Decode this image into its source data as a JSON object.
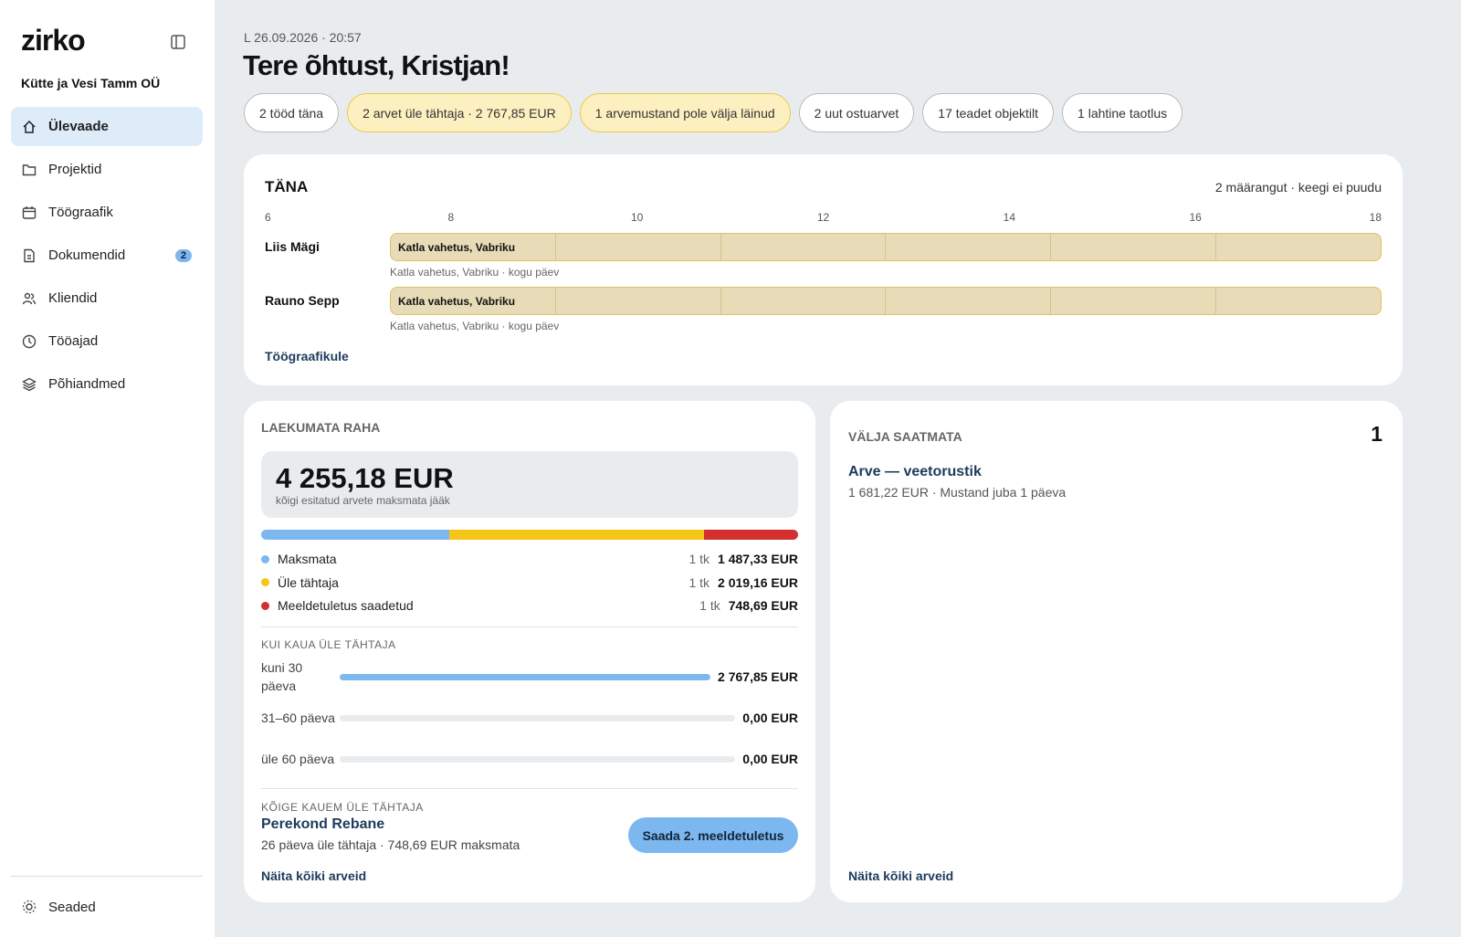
{
  "sidebar": {
    "logo": "zirko",
    "company": "Kütte ja Vesi Tamm OÜ",
    "nav": [
      {
        "label": "Ülevaade",
        "active": true
      },
      {
        "label": "Projektid"
      },
      {
        "label": "Töögraafik"
      },
      {
        "label": "Dokumendid",
        "badge": "2"
      },
      {
        "label": "Kliendid"
      },
      {
        "label": "Tööajad"
      },
      {
        "label": "Põhiandmed"
      }
    ],
    "settings": "Seaded"
  },
  "header": {
    "date": "L 26.09.2026 · 20:57",
    "greeting": "Tere õhtust, Kristjan!"
  },
  "chips": [
    {
      "label": "2 tööd täna"
    },
    {
      "label": "2 arvet üle tähtaja · 2 767,85 EUR",
      "warn": true
    },
    {
      "label": "1 arvemustand pole välja läinud",
      "warn": true
    },
    {
      "label": "2 uut ostuarvet"
    },
    {
      "label": "17 teadet objektilt"
    },
    {
      "label": "1 lahtine taotlus"
    }
  ],
  "today": {
    "title": "TÄNA",
    "summary": "2 määrangut · keegi ei puudu",
    "hours": [
      6,
      8,
      10,
      12,
      14,
      16,
      18
    ],
    "rows": [
      {
        "name": "Liis Mägi",
        "block": "Katla vahetus, Vabriku",
        "note": "Katla vahetus, Vabriku · kogu päev"
      },
      {
        "name": "Rauno Sepp",
        "block": "Katla vahetus, Vabriku",
        "note": "Katla vahetus, Vabriku · kogu päev"
      }
    ],
    "link": "Töögraafikule"
  },
  "receivables": {
    "title": "LAEKUMATA RAHA",
    "total": "4 255,18 EUR",
    "total_note": "kõigi esitatud arvete maksmata jääk",
    "legend": [
      {
        "label": "Maksmata",
        "count": "1 tk",
        "amount": "1 487,33 EUR",
        "color": "#7cb7ef"
      },
      {
        "label": "Üle tähtaja",
        "count": "1 tk",
        "amount": "2 019,16 EUR",
        "color": "#f5c518"
      },
      {
        "label": "Meeldetuletus saadetud",
        "count": "1 tk",
        "amount": "748,69 EUR",
        "color": "#d32f2f"
      }
    ],
    "aging_title": "KUI KAUA ÜLE TÄHTAJA",
    "aging": [
      {
        "label": "kuni 30 päeva",
        "amount": "2 767,85 EUR"
      },
      {
        "label": "31–60 päeva",
        "amount": "0,00 EUR"
      },
      {
        "label": "üle 60 päeva",
        "amount": "0,00 EUR"
      }
    ],
    "oldest_title": "KÕIGE KAUEM ÜLE TÄHTAJA",
    "oldest_name": "Perekond Rebane",
    "oldest_detail": "26 päeva üle tähtaja · 748,69 EUR maksmata",
    "button": "Saada 2. meeldetuletus",
    "link": "Näita kõiki arveid"
  },
  "unsent": {
    "title": "VÄLJA SAATMATA",
    "count": "1",
    "item_title": "Arve — veetorustik",
    "item_detail": "1 681,22 EUR · Mustand juba 1 päeva",
    "link": "Näita kõiki arveid"
  }
}
